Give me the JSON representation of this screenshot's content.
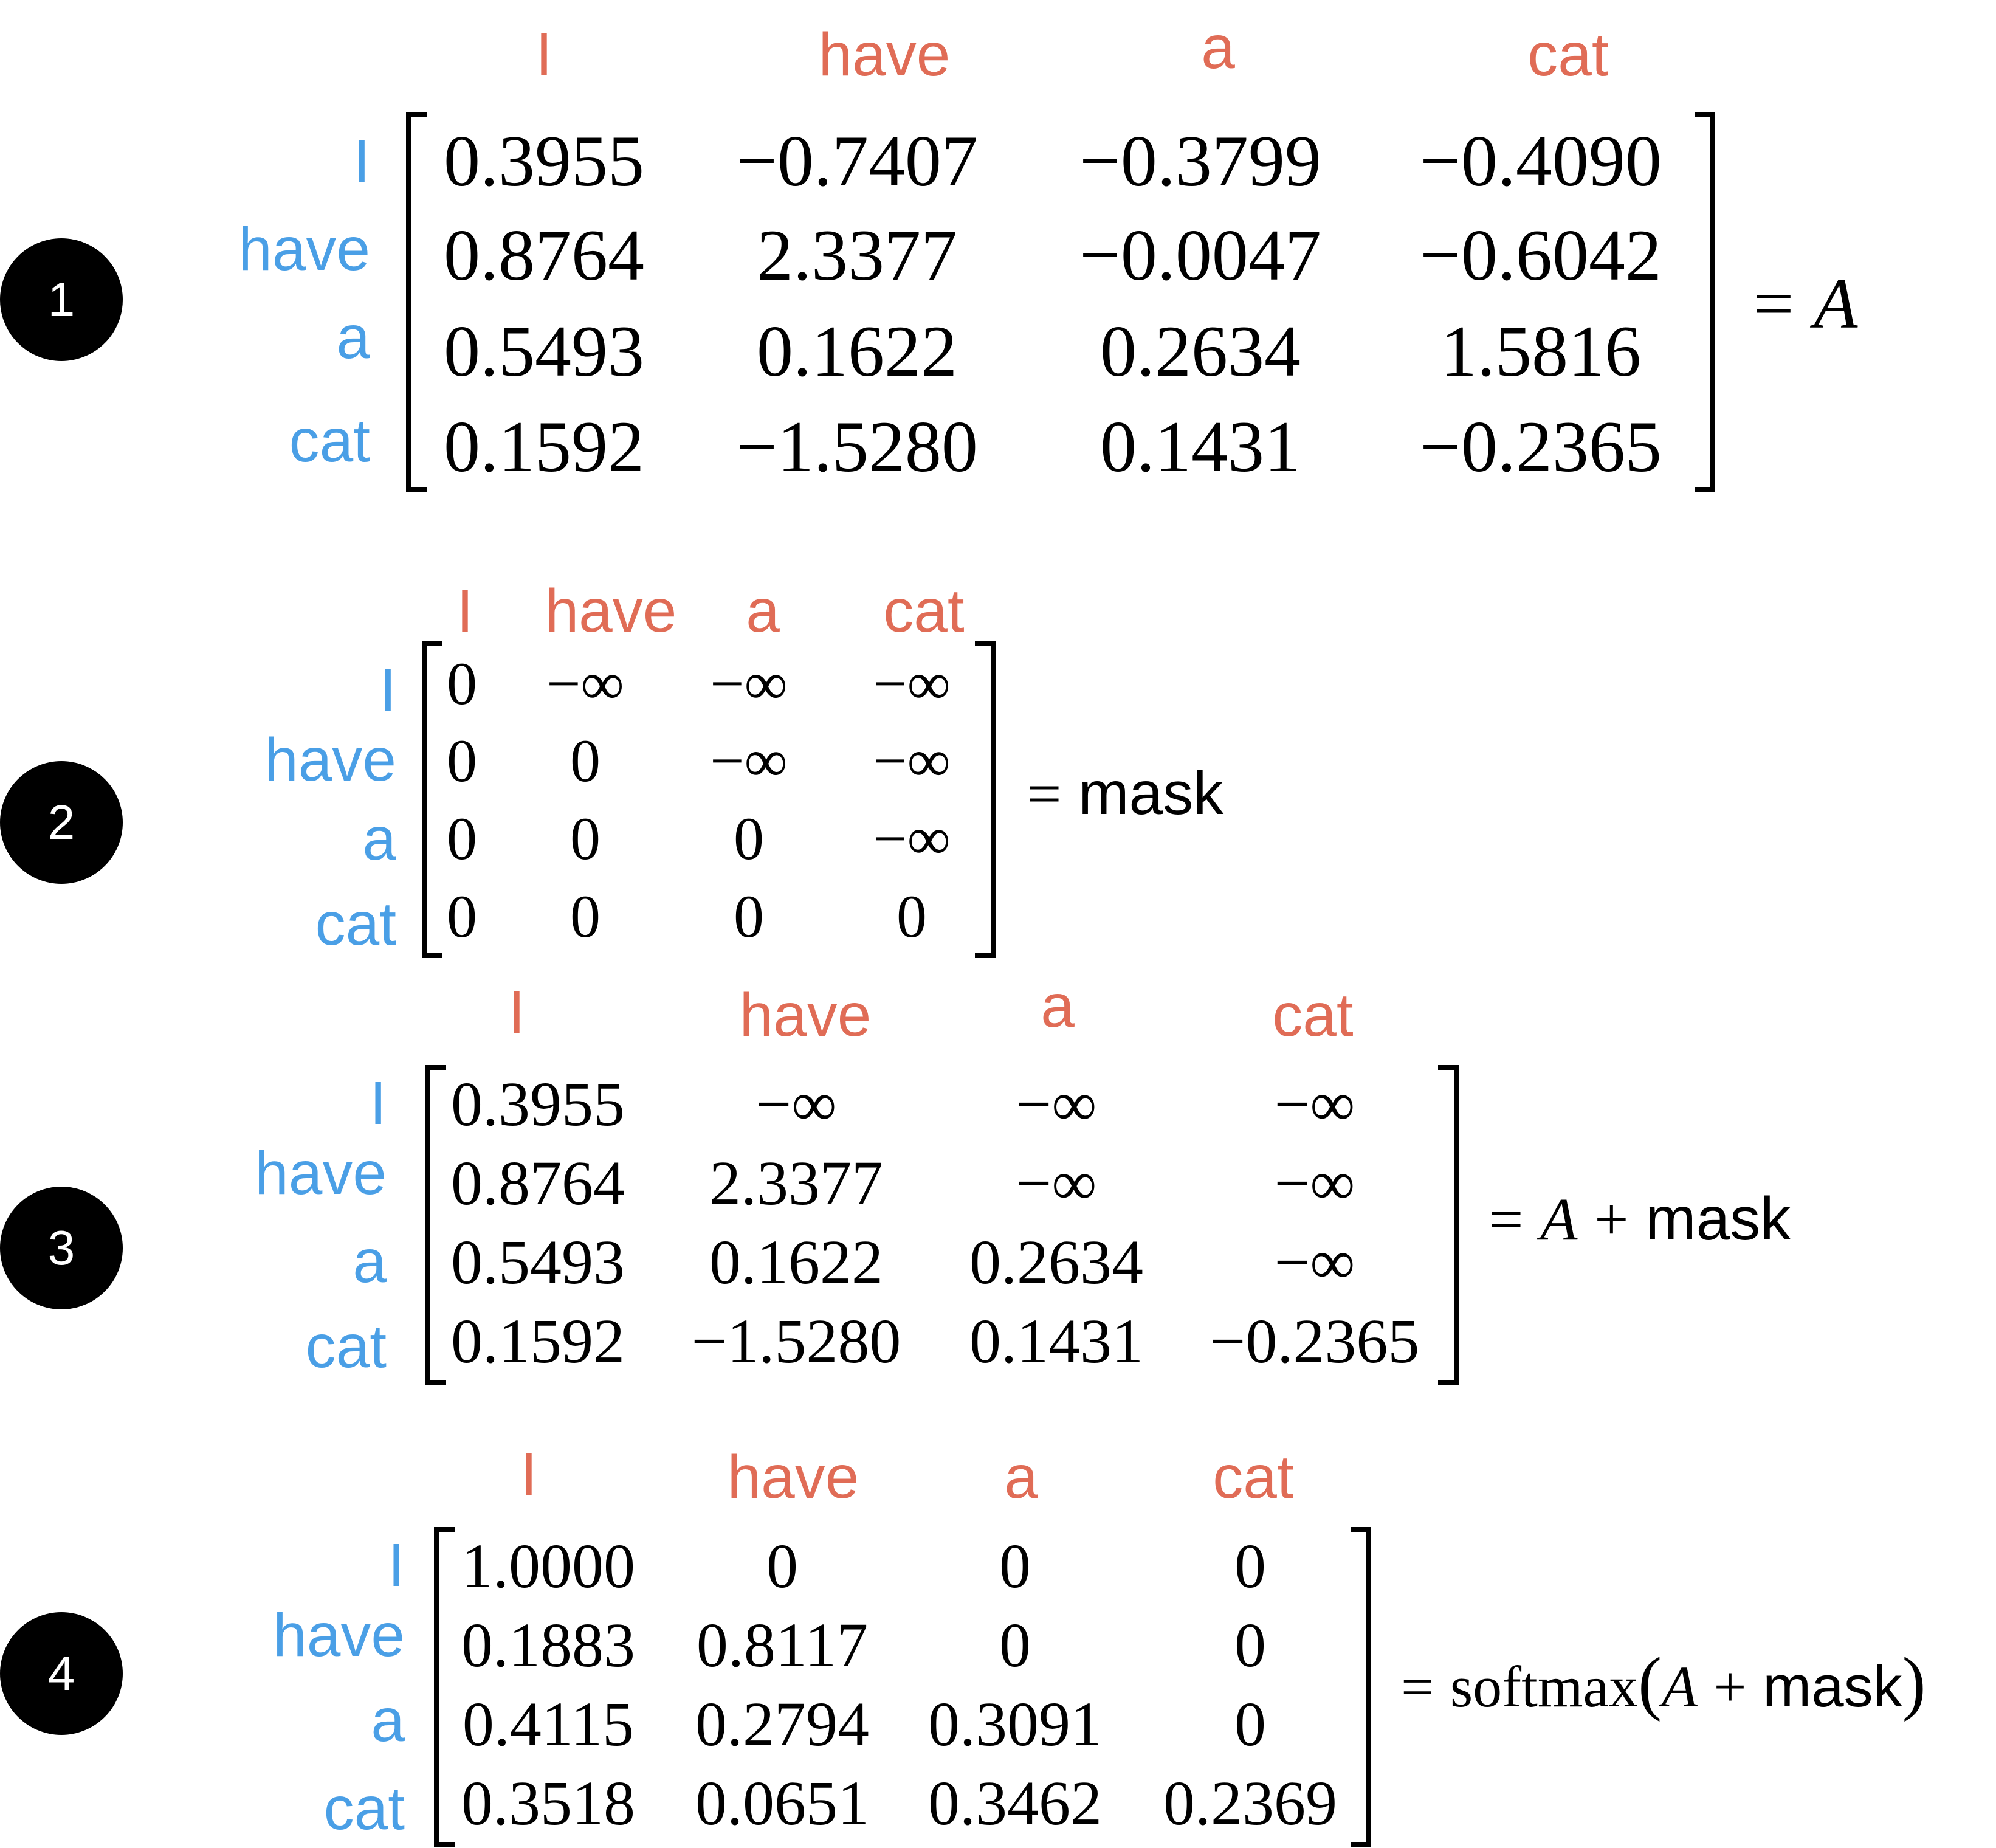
{
  "tokens": [
    "I",
    "have",
    "a",
    "cat"
  ],
  "colors": {
    "column_labels": "#e06c56",
    "row_labels": "#4a9fe6",
    "step_badge": "#000000"
  },
  "panels": [
    {
      "step": "1",
      "matrix": [
        [
          "0.3955",
          "−0.7407",
          "−0.3799",
          "−0.4090"
        ],
        [
          "0.8764",
          "2.3377",
          "−0.0047",
          "−0.6042"
        ],
        [
          "0.5493",
          "0.1622",
          "0.2634",
          "1.5816"
        ],
        [
          "0.1592",
          "−1.5280",
          "0.1431",
          "−0.2365"
        ]
      ],
      "equation": {
        "eq": "=",
        "A": "A"
      }
    },
    {
      "step": "2",
      "matrix": [
        [
          "0",
          "−∞",
          "−∞",
          "−∞"
        ],
        [
          "0",
          "0",
          "−∞",
          "−∞"
        ],
        [
          "0",
          "0",
          "0",
          "−∞"
        ],
        [
          "0",
          "0",
          "0",
          "0"
        ]
      ],
      "equation": {
        "eq": "=",
        "mask": "mask"
      }
    },
    {
      "step": "3",
      "matrix": [
        [
          "0.3955",
          "−∞",
          "−∞",
          "−∞"
        ],
        [
          "0.8764",
          "2.3377",
          "−∞",
          "−∞"
        ],
        [
          "0.5493",
          "0.1622",
          "0.2634",
          "−∞"
        ],
        [
          "0.1592",
          "−1.5280",
          "0.1431",
          "−0.2365"
        ]
      ],
      "equation": {
        "eq": "=",
        "A": "A",
        "plus": "+",
        "mask": "mask"
      }
    },
    {
      "step": "4",
      "matrix": [
        [
          "1.0000",
          "0",
          "0",
          "0"
        ],
        [
          "0.1883",
          "0.8117",
          "0",
          "0"
        ],
        [
          "0.4115",
          "0.2794",
          "0.3091",
          "0"
        ],
        [
          "0.3518",
          "0.0651",
          "0.3462",
          "0.2369"
        ]
      ],
      "equation": {
        "eq": "=",
        "fn": "softmax",
        "lparen": "(",
        "A": "A",
        "plus": "+",
        "mask": "mask",
        "rparen": ")"
      }
    }
  ]
}
